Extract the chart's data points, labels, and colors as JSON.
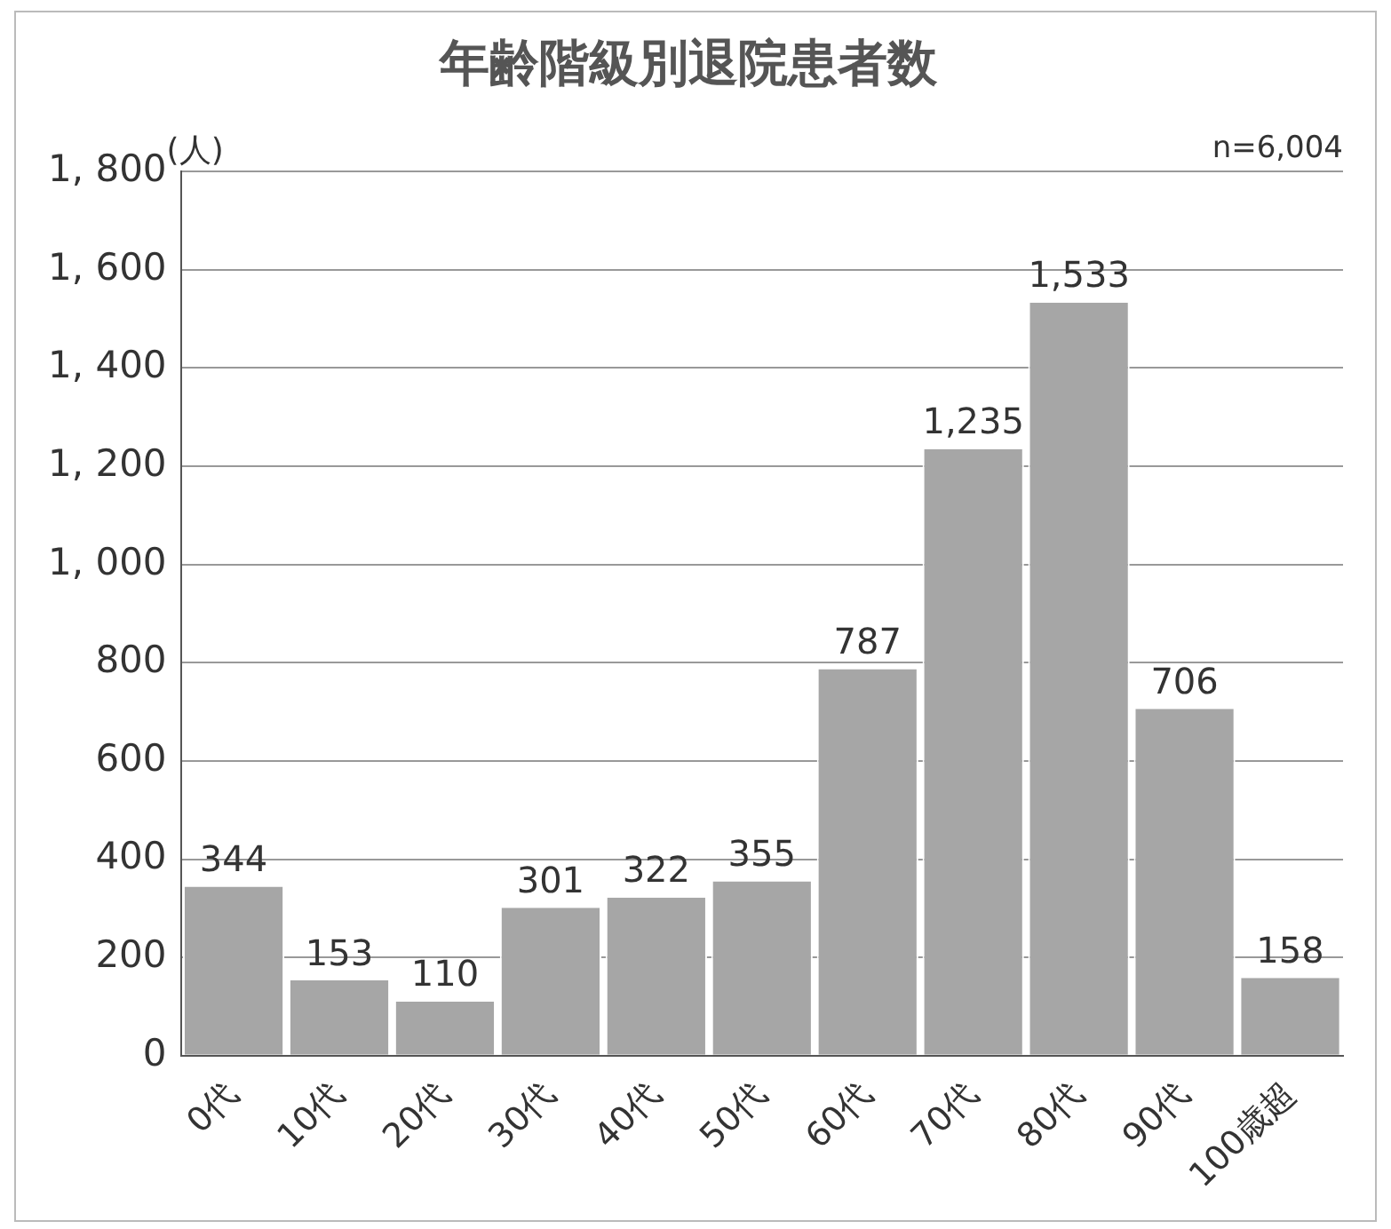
{
  "chart_data": {
    "type": "bar",
    "title": "年齢階級別退院患者数",
    "ylabel": "(人)",
    "annotations": [
      "n=6,004"
    ],
    "categories": [
      "0代",
      "10代",
      "20代",
      "30代",
      "40代",
      "50代",
      "60代",
      "70代",
      "80代",
      "90代",
      "100歳超"
    ],
    "values": [
      344,
      153,
      110,
      301,
      322,
      355,
      787,
      1235,
      1533,
      706,
      158
    ],
    "value_labels": [
      "344",
      "153",
      "110",
      "301",
      "322",
      "355",
      "787",
      "1,235",
      "1,533",
      "706",
      "158"
    ],
    "color": "#a6a6a6",
    "ylim": [
      0,
      1800
    ],
    "yticks": [
      0,
      200,
      400,
      600,
      800,
      {
        "value": 1000,
        "label": "1, 000"
      },
      {
        "value": 1200,
        "label": "1, 200"
      },
      {
        "value": 1400,
        "label": "1, 400"
      },
      {
        "value": 1600,
        "label": "1, 600"
      },
      {
        "value": 1800,
        "label": "1, 800"
      }
    ],
    "grid": "y"
  }
}
